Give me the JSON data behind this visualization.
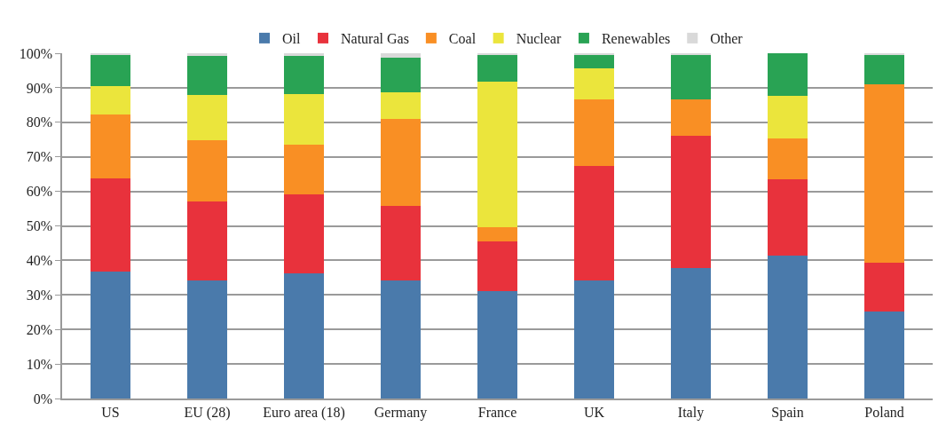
{
  "chart_data": {
    "type": "bar",
    "stacked": true,
    "categories": [
      "US",
      "EU (28)",
      "Euro area (18)",
      "Germany",
      "France",
      "UK",
      "Italy",
      "Spain",
      "Poland"
    ],
    "series": [
      {
        "name": "Oil",
        "color": "#4a7aab",
        "values": [
          36.7,
          34.3,
          36.3,
          34.3,
          31.0,
          34.2,
          37.8,
          41.3,
          25.3
        ]
      },
      {
        "name": "Natural Gas",
        "color": "#e8323c",
        "values": [
          27.0,
          22.7,
          22.8,
          21.4,
          14.6,
          33.1,
          38.4,
          22.2,
          14.0
        ]
      },
      {
        "name": "Coal",
        "color": "#f98f24",
        "values": [
          18.5,
          17.8,
          14.4,
          25.2,
          3.9,
          19.4,
          10.5,
          11.7,
          51.6
        ]
      },
      {
        "name": "Nuclear",
        "color": "#ebe53c",
        "values": [
          8.4,
          13.2,
          14.8,
          7.9,
          42.4,
          8.9,
          0,
          12.5,
          0
        ]
      },
      {
        "name": "Renewables",
        "color": "#29a354",
        "values": [
          9.1,
          11.2,
          10.9,
          9.9,
          7.8,
          4.1,
          13.0,
          12.3,
          8.8
        ]
      },
      {
        "name": "Other",
        "color": "#d9d9d9",
        "values": [
          0.3,
          0.8,
          0.8,
          1.3,
          0.3,
          0.3,
          0.3,
          0,
          0.3
        ]
      }
    ],
    "ylim": [
      0,
      100
    ],
    "yticks": [
      {
        "value": 0,
        "label": "0%"
      },
      {
        "value": 10,
        "label": "10%"
      },
      {
        "value": 20,
        "label": "20%"
      },
      {
        "value": 30,
        "label": "30%"
      },
      {
        "value": 40,
        "label": "40%"
      },
      {
        "value": 50,
        "label": "50%"
      },
      {
        "value": 60,
        "label": "60%"
      },
      {
        "value": 70,
        "label": "70%"
      },
      {
        "value": 80,
        "label": "80%"
      },
      {
        "value": 90,
        "label": "90%"
      },
      {
        "value": 100,
        "label": "100%"
      }
    ],
    "grid": "y",
    "legend": "top"
  }
}
